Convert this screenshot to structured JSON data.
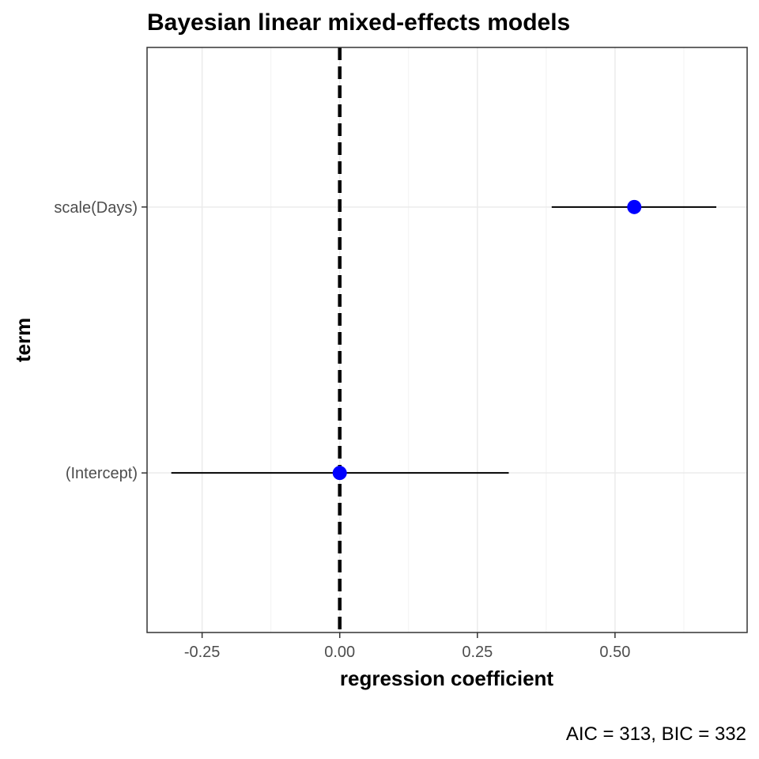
{
  "chart_data": {
    "type": "dot-and-whisker",
    "title": "Bayesian linear mixed-effects models",
    "xlabel": "regression coefficient",
    "ylabel": "term",
    "caption": "AIC = 313, BIC = 332",
    "xlim": [
      -0.35,
      0.74
    ],
    "x_ticks": [
      -0.25,
      0.0,
      0.25,
      0.5
    ],
    "x_tick_labels": [
      "-0.25",
      "0.00",
      "0.25",
      "0.50"
    ],
    "x_minor_ticks": [
      -0.125,
      0.125,
      0.375,
      0.625
    ],
    "reference_line": 0,
    "terms": [
      "(Intercept)",
      "scale(Days)"
    ],
    "estimates": [
      {
        "term": "(Intercept)",
        "estimate": 0.0,
        "conf_low": -0.306,
        "conf_high": 0.307
      },
      {
        "term": "scale(Days)",
        "estimate": 0.535,
        "conf_low": 0.385,
        "conf_high": 0.684
      }
    ],
    "point_color": "#0000ff",
    "grid": true,
    "legend": "none"
  }
}
